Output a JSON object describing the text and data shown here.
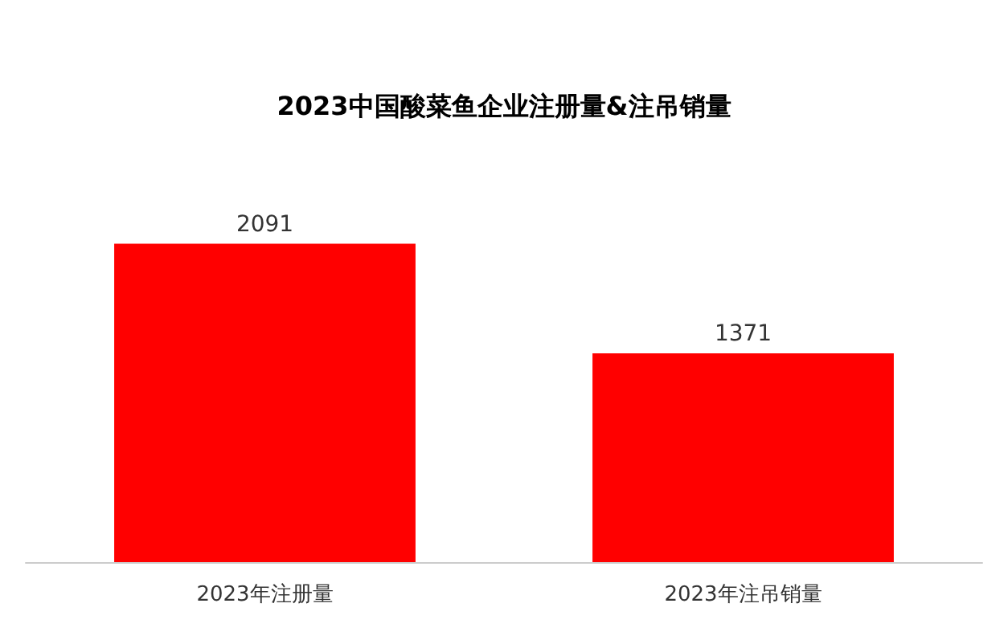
{
  "chart_data": {
    "type": "bar",
    "title": "2023中国酸菜鱼企业注册量&注吊销量",
    "categories": [
      "2023年注册量",
      "2023年注吊销量"
    ],
    "values": [
      2091,
      1371
    ],
    "color": "#ff0000",
    "data_labels": true
  }
}
